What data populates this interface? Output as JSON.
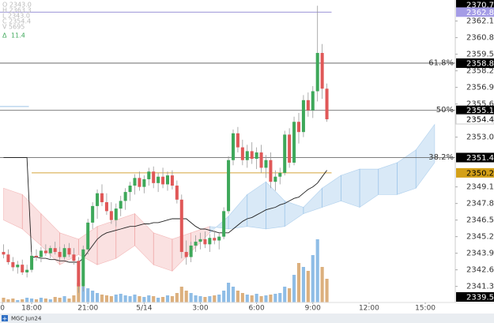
{
  "chart_data": {
    "type": "candlestick",
    "symbol": "MGC Jun24",
    "legend": {
      "lines": [
        "O 2343.0",
        "H 2363.3",
        "L 2343.0",
        "C 2354.4",
        "V 5695"
      ],
      "change_symbol": "Δ",
      "change": 11.4
    },
    "x": [
      -1.5,
      -1.25,
      -1,
      -0.75,
      -0.5,
      -0.25,
      0,
      0.25,
      0.5,
      0.75,
      1,
      1.25,
      1.5,
      1.75,
      2,
      2.25,
      2.5,
      2.75,
      3,
      3.25,
      3.5,
      3.75,
      4,
      4.25,
      4.5,
      4.75,
      5,
      5.25,
      5.5,
      5.75,
      6,
      6.25,
      6.5,
      6.75,
      7,
      7.25,
      7.5,
      7.75,
      8,
      8.25,
      8.5,
      8.75,
      9,
      9.25,
      9.5,
      9.75,
      10,
      10.25,
      10.5,
      10.75,
      11,
      11.25,
      11.5,
      11.75,
      12,
      12.25,
      12.5,
      12.75,
      13,
      13.25,
      13.5,
      13.75,
      14,
      14.25,
      14.5,
      14.75,
      15,
      15.25,
      15.5,
      15.75
    ],
    "open": [
      2344.0,
      2343.8,
      2343.2,
      2342.8,
      2343.0,
      2342.4,
      2342.6,
      2343.7,
      2343.6,
      2344.1,
      2343.9,
      2344.3,
      2344.0,
      2343.6,
      2344.3,
      2343.8,
      2343.3,
      2341.3,
      2344.2,
      2346.3,
      2347.6,
      2348.6,
      2347.9,
      2347.2,
      2346.5,
      2347.4,
      2348.0,
      2348.7,
      2349.2,
      2349.8,
      2349.1,
      2349.7,
      2350.3,
      2349.4,
      2349.9,
      2349.3,
      2350.0,
      2349.2,
      2348.1,
      2344.0,
      2343.6,
      2344.5,
      2344.8,
      2345.0,
      2344.6,
      2345.1,
      2344.9,
      2345.2,
      2347.2,
      2351.2,
      2353.3,
      2352.2,
      2351.2,
      2351.9,
      2351.3,
      2351.8,
      2350.6,
      2351.2,
      2349.5,
      2349.9,
      2350.2,
      2353.2,
      2351.0,
      2354.2,
      2353.4,
      2355.9,
      2355.1,
      2356.6,
      2359.6,
      2356.8
    ],
    "high": [
      2344.6,
      2344.2,
      2343.6,
      2343.3,
      2343.4,
      2343.0,
      2344.0,
      2344.2,
      2344.4,
      2344.6,
      2344.5,
      2344.8,
      2344.4,
      2344.6,
      2344.7,
      2344.3,
      2343.6,
      2344.5,
      2346.6,
      2347.9,
      2348.9,
      2349.3,
      2348.6,
      2347.9,
      2347.8,
      2348.4,
      2349.0,
      2349.5,
      2350.1,
      2350.3,
      2350.0,
      2350.6,
      2350.7,
      2350.2,
      2350.6,
      2350.3,
      2350.4,
      2349.6,
      2348.5,
      2344.9,
      2344.8,
      2345.3,
      2345.5,
      2345.6,
      2345.4,
      2345.7,
      2345.5,
      2347.5,
      2351.5,
      2353.6,
      2353.8,
      2352.8,
      2352.4,
      2352.6,
      2352.2,
      2352.4,
      2351.6,
      2351.8,
      2350.4,
      2350.6,
      2353.5,
      2353.7,
      2354.6,
      2354.9,
      2356.3,
      2356.5,
      2357.0,
      2363.3,
      2360.3,
      2357.2
    ],
    "low": [
      2343.5,
      2343.0,
      2342.5,
      2342.3,
      2342.2,
      2342.0,
      2342.4,
      2343.3,
      2343.2,
      2343.7,
      2343.5,
      2343.8,
      2343.4,
      2343.4,
      2343.6,
      2343.0,
      2340.8,
      2340.9,
      2343.8,
      2345.8,
      2346.6,
      2347.6,
      2346.9,
      2346.2,
      2346.0,
      2346.8,
      2347.3,
      2348.0,
      2348.5,
      2348.8,
      2348.6,
      2349.2,
      2349.0,
      2348.7,
      2349.0,
      2348.8,
      2348.9,
      2347.8,
      2343.5,
      2343.0,
      2343.2,
      2344.0,
      2344.2,
      2344.3,
      2344.0,
      2344.6,
      2344.2,
      2345.0,
      2347.0,
      2350.8,
      2351.8,
      2350.8,
      2350.6,
      2350.9,
      2350.5,
      2350.2,
      2349.8,
      2349.0,
      2348.8,
      2349.3,
      2350.0,
      2350.6,
      2350.8,
      2352.5,
      2353.0,
      2354.6,
      2354.5,
      2355.8,
      2356.0,
      2354.2
    ],
    "close": [
      2343.8,
      2343.2,
      2342.8,
      2343.0,
      2342.4,
      2342.6,
      2343.7,
      2343.6,
      2344.1,
      2343.9,
      2344.3,
      2344.0,
      2343.6,
      2344.3,
      2343.8,
      2343.3,
      2341.3,
      2344.2,
      2346.3,
      2347.6,
      2348.6,
      2347.9,
      2347.2,
      2346.5,
      2347.4,
      2348.0,
      2348.7,
      2349.2,
      2349.8,
      2349.1,
      2349.7,
      2350.3,
      2349.4,
      2349.9,
      2349.3,
      2350.0,
      2349.2,
      2348.1,
      2344.0,
      2343.6,
      2344.5,
      2344.8,
      2345.0,
      2344.6,
      2345.1,
      2344.9,
      2345.2,
      2347.2,
      2351.2,
      2353.3,
      2352.2,
      2351.2,
      2351.9,
      2351.3,
      2351.8,
      2350.6,
      2351.2,
      2349.5,
      2349.9,
      2350.2,
      2353.2,
      2351.0,
      2354.2,
      2353.4,
      2355.9,
      2355.1,
      2356.6,
      2359.6,
      2356.8,
      2354.4
    ],
    "volume": [
      60,
      40,
      50,
      30,
      40,
      60,
      50,
      40,
      60,
      50,
      40,
      70,
      60,
      80,
      50,
      90,
      250,
      200,
      180,
      150,
      120,
      100,
      90,
      80,
      100,
      110,
      90,
      80,
      100,
      80,
      70,
      90,
      80,
      60,
      70,
      90,
      80,
      120,
      200,
      150,
      120,
      90,
      80,
      70,
      80,
      90,
      100,
      150,
      250,
      200,
      150,
      120,
      100,
      90,
      110,
      80,
      90,
      100,
      110,
      120,
      200,
      180,
      350,
      500,
      450,
      400,
      600,
      800,
      450,
      300
    ],
    "vlim": [
      0,
      1000
    ],
    "ma": [
      2351.4,
      2351.4,
      2351.4,
      2351.4,
      2351.4,
      2351.4,
      2343.6,
      2343.6,
      2343.5,
      2343.5,
      2343.4,
      2343.4,
      2343.3,
      2343.3,
      2343.2,
      2343.2,
      2343.2,
      2343.5,
      2344.0,
      2344.5,
      2345.0,
      2345.3,
      2345.5,
      2345.6,
      2345.7,
      2345.8,
      2345.9,
      2346.0,
      2346.0,
      2346.1,
      2346.2,
      2346.2,
      2346.3,
      2346.3,
      2346.4,
      2346.5,
      2346.6,
      2346.6,
      2346.6,
      2346.6,
      2346.3,
      2346.0,
      2345.8,
      2345.8,
      2345.7,
      2345.6,
      2345.5,
      2345.5,
      2345.5,
      2345.8,
      2346.1,
      2346.4,
      2346.6,
      2346.7,
      2346.9,
      2347.1,
      2347.3,
      2347.4,
      2347.5,
      2347.7,
      2347.8,
      2348.0,
      2348.2,
      2348.3,
      2348.6,
      2348.9,
      2349.1,
      2349.4,
      2349.9,
      2350.4
    ],
    "cloud": {
      "x": [
        -1.5,
        -0.5,
        0.5,
        1.5,
        2.5,
        3.5,
        4.5,
        5.5,
        6.5,
        7.5,
        8.5,
        9.5,
        10.5,
        11.5,
        12.5,
        13.5,
        14.5,
        15.5,
        16.5,
        17.5,
        18.5,
        19.5,
        20.5,
        21.5
      ],
      "span_a": [
        2346.5,
        2345.8,
        2344.5,
        2343.0,
        2343.8,
        2343.0,
        2343.5,
        2344.5,
        2343.0,
        2342.5,
        2344.0,
        2345.5,
        2346.8,
        2348.5,
        2349.5,
        2348.0,
        2347.5,
        2349.0,
        2350.0,
        2350.5,
        2350.5,
        2351.0,
        2352.0,
        2354.0
      ],
      "span_b": [
        2349.0,
        2348.5,
        2347.0,
        2345.5,
        2345.0,
        2346.0,
        2346.5,
        2347.0,
        2345.5,
        2345.0,
        2345.5,
        2346.0,
        2345.8,
        2346.0,
        2345.8,
        2346.0,
        2347.0,
        2347.5,
        2348.0,
        2347.5,
        2348.5,
        2348.5,
        2349.0,
        2351.0
      ]
    },
    "up_color": "#3ea85a",
    "down_color": "#e05858",
    "xlim": [
      -1.69,
      22.6
    ],
    "xticks": [
      {
        "value": -1.56,
        "label": "0"
      },
      {
        "value": 0,
        "label": "18:00"
      },
      {
        "value": 3,
        "label": "21:00"
      },
      {
        "value": 6,
        "label": "5/14"
      },
      {
        "value": 9,
        "label": "3:00"
      },
      {
        "value": 12,
        "label": "6:00"
      },
      {
        "value": 15,
        "label": "9:00"
      },
      {
        "value": 18,
        "label": "12:00"
      },
      {
        "value": 21,
        "label": "15:00"
      }
    ],
    "ylim": [
      2340.04,
      2363.75
    ],
    "yticks": [
      2341.3,
      2342.6,
      2343.9,
      2345.2,
      2346.5,
      2347.8,
      2349.1,
      {
        "value": 2353,
        "label": "2353.0"
      },
      2355.6,
      2356.9,
      2358.2,
      2359.5,
      2360.8,
      2362.1
    ],
    "levels": [
      {
        "value": 2358.8,
        "label": "61.8%"
      },
      {
        "value": 2355.1,
        "label": "50%"
      },
      {
        "value": 2351.4,
        "label": "38.2%"
      }
    ],
    "lines": [
      {
        "value": 2362.8,
        "color": "#9c94d8",
        "x_start": -1.69,
        "x_end": 16
      },
      {
        "value": 2350.2,
        "color": "#d4a53a",
        "x_start": 0,
        "x_end": 16
      },
      {
        "value": 2355.4,
        "color": "#9cc3e6",
        "x_start": -1.69,
        "x_end": -0.15
      }
    ],
    "price_markers": [
      {
        "value": 2370.7,
        "bg": "#000000",
        "fg": "#ffffff"
      },
      {
        "value": 2362.8,
        "bg": "#a49ce6",
        "fg": "#ffffff"
      },
      {
        "value": 2358.8,
        "bg": "#000000",
        "fg": "#ffffff"
      },
      {
        "value": 2355.1,
        "bg": "#000000",
        "fg": "#ffffff"
      },
      {
        "value": 2354.4,
        "bg": "#ffffff",
        "fg": "#000000"
      },
      {
        "value": 2351.4,
        "bg": "#000000",
        "fg": "#ffffff"
      },
      {
        "value": 2350.2,
        "bg": "#d4a017",
        "fg": "#000000"
      },
      {
        "value": 2339.5,
        "bg": "#000000",
        "fg": "#ffffff"
      }
    ]
  }
}
